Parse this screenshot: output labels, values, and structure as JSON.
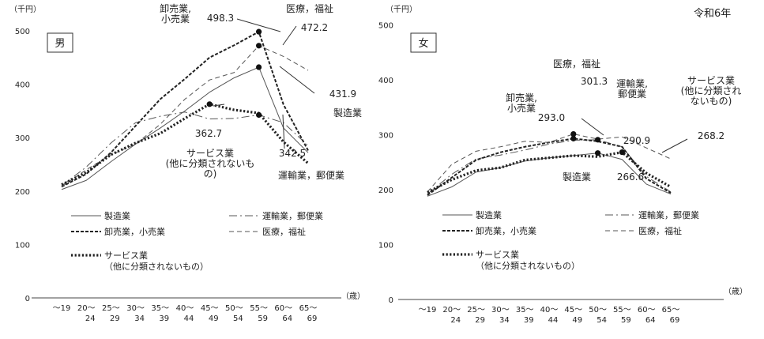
{
  "header": {
    "era": "令和6年"
  },
  "chart_data": [
    {
      "type": "line",
      "panel": "男",
      "yunit": "（千円）",
      "xunit": "（歳）",
      "yticks": [
        "0",
        "100",
        "200",
        "300",
        "400",
        "500"
      ],
      "ylim": [
        0,
        500
      ],
      "categories": [
        {
          "a": "～19",
          "b": ""
        },
        {
          "a": "20～",
          "b": "24"
        },
        {
          "a": "25～",
          "b": "29"
        },
        {
          "a": "30～",
          "b": "34"
        },
        {
          "a": "35～",
          "b": "39"
        },
        {
          "a": "40～",
          "b": "44"
        },
        {
          "a": "45～",
          "b": "49"
        },
        {
          "a": "50～",
          "b": "54"
        },
        {
          "a": "55～",
          "b": "59"
        },
        {
          "a": "60～",
          "b": "64"
        },
        {
          "a": "65～",
          "b": "69"
        }
      ],
      "series": [
        {
          "name": "製造業",
          "style": "solid",
          "values": [
            203,
            220,
            255,
            288,
            318,
            350,
            385,
            412,
            431.9,
            318,
            272
          ]
        },
        {
          "name": "運輸業，郵便業",
          "style": "dashdot",
          "values": [
            210,
            245,
            290,
            328,
            340,
            348,
            335,
            336,
            342.5,
            328,
            285
          ]
        },
        {
          "name": "卸売業，小売業",
          "style": "dashbold",
          "values": [
            208,
            232,
            272,
            322,
            372,
            410,
            450,
            473,
            498.3,
            362,
            276
          ]
        },
        {
          "name": "医療，福祉",
          "style": "dash",
          "values": [
            208,
            240,
            268,
            288,
            325,
            372,
            408,
            422,
            472.2,
            452,
            426
          ]
        },
        {
          "name": "サービス業（他に分類されないもの）",
          "style": "dotted",
          "values": [
            212,
            235,
            268,
            290,
            308,
            336,
            362.7,
            352,
            346,
            292,
            252
          ]
        }
      ],
      "annotations": [
        {
          "text": "卸売業,",
          "lines": [
            "卸売業,",
            "小売業"
          ]
        },
        {
          "text": "498.3"
        },
        {
          "text": "医療，福祉"
        },
        {
          "text": "472.2"
        },
        {
          "text": "431.9"
        },
        {
          "text": "製造業"
        },
        {
          "text": "362.7"
        },
        {
          "text": "サービス業",
          "lines": [
            "サービス業",
            "(他に分類されないも",
            "の)"
          ]
        },
        {
          "text": "342.5"
        },
        {
          "text": "運輸業，郵便業"
        }
      ],
      "legend": [
        {
          "label": "製造業",
          "style": "solid"
        },
        {
          "label": "運輸業，郵便業",
          "style": "dashdot"
        },
        {
          "label": "卸売業，小売業",
          "style": "dashbold"
        },
        {
          "label": "医療，福祉",
          "style": "dash"
        },
        {
          "label": "サービス業",
          "label2": "（他に分類されないもの）",
          "style": "dotted"
        }
      ]
    },
    {
      "type": "line",
      "panel": "女",
      "yunit": "（千円）",
      "xunit": "（歳）",
      "yticks": [
        "0",
        "100",
        "200",
        "300",
        "400",
        "500"
      ],
      "ylim": [
        0,
        500
      ],
      "categories": [
        {
          "a": "～19",
          "b": ""
        },
        {
          "a": "20～",
          "b": "24"
        },
        {
          "a": "25～",
          "b": "29"
        },
        {
          "a": "30～",
          "b": "34"
        },
        {
          "a": "35～",
          "b": "39"
        },
        {
          "a": "40～",
          "b": "44"
        },
        {
          "a": "45～",
          "b": "49"
        },
        {
          "a": "50～",
          "b": "54"
        },
        {
          "a": "55～",
          "b": "59"
        },
        {
          "a": "60～",
          "b": "64"
        },
        {
          "a": "65～",
          "b": "69"
        }
      ],
      "series": [
        {
          "name": "製造業",
          "style": "solid",
          "values": [
            188,
            205,
            232,
            240,
            252,
            258,
            262,
            266.6,
            255,
            210,
            192
          ]
        },
        {
          "name": "運輸業，郵便業",
          "style": "dashdot",
          "values": [
            192,
            228,
            256,
            263,
            272,
            283,
            290,
            290.9,
            278,
            224,
            196
          ]
        },
        {
          "name": "卸売業，小売業",
          "style": "dashbold",
          "values": [
            190,
            222,
            254,
            268,
            278,
            286,
            293.0,
            288,
            278,
            220,
            194
          ]
        },
        {
          "name": "医療，福祉",
          "style": "dash",
          "values": [
            196,
            246,
            270,
            278,
            288,
            286,
            301.3,
            292,
            296,
            276,
            256
          ]
        },
        {
          "name": "サービス業（他に分類されないもの）",
          "style": "dotted",
          "values": [
            195,
            218,
            235,
            240,
            254,
            258,
            262,
            260,
            268.2,
            230,
            205
          ]
        }
      ],
      "annotations": [
        {
          "text": "医療，福祉"
        },
        {
          "text": "301.3"
        },
        {
          "text": "卸売業,",
          "lines": [
            "卸売業,",
            "小売業"
          ]
        },
        {
          "text": "293.0"
        },
        {
          "text": "運輸業,",
          "lines": [
            "運輸業,",
            "郵便業"
          ]
        },
        {
          "text": "290.9"
        },
        {
          "text": "サービス業",
          "lines": [
            "サービス業",
            "(他に分類され",
            "ないもの)"
          ]
        },
        {
          "text": "268.2"
        },
        {
          "text": "製造業"
        },
        {
          "text": "266.6"
        }
      ],
      "legend": [
        {
          "label": "製造業",
          "style": "solid"
        },
        {
          "label": "運輸業，郵便業",
          "style": "dashdot"
        },
        {
          "label": "卸売業，小売業",
          "style": "dashbold"
        },
        {
          "label": "医療，福祉",
          "style": "dash"
        },
        {
          "label": "サービス業",
          "label2": "（他に分類されないもの）",
          "style": "dotted"
        }
      ]
    }
  ]
}
